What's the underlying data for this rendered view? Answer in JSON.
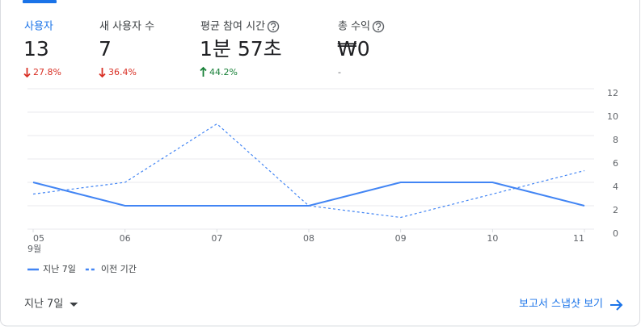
{
  "metrics": [
    {
      "label": "사용자",
      "value": "13",
      "change": "27.8%",
      "direction": "down",
      "selected": true
    },
    {
      "label": "새 사용자 수",
      "value": "7",
      "change": "36.4%",
      "direction": "down",
      "selected": false
    },
    {
      "label": "평균 참여 시간",
      "value": "1분 57초",
      "change": "44.2%",
      "direction": "up",
      "selected": false,
      "help": true
    },
    {
      "label": "총 수익",
      "value": "₩0",
      "change": "-",
      "direction": null,
      "selected": false,
      "help": true
    }
  ],
  "chart_data": {
    "type": "line",
    "categories": [
      "05",
      "06",
      "07",
      "08",
      "09",
      "10",
      "11"
    ],
    "x_sublabel": "9월",
    "series": [
      {
        "name": "지난 7일",
        "color": "#4285f4",
        "style": "solid",
        "values": [
          4,
          2,
          2,
          2,
          4,
          4,
          2
        ]
      },
      {
        "name": "이전 기간",
        "color": "#4285f4",
        "style": "dashed",
        "values": [
          3,
          4,
          9,
          2,
          1,
          3,
          5
        ]
      }
    ],
    "ylim": [
      0,
      12
    ],
    "yticks": [
      0,
      2,
      4,
      6,
      8,
      10,
      12
    ],
    "grid": true,
    "y_axis_side": "right"
  },
  "footer": {
    "date_range": "지난 7일",
    "link": "보고서 스냅샷 보기"
  }
}
